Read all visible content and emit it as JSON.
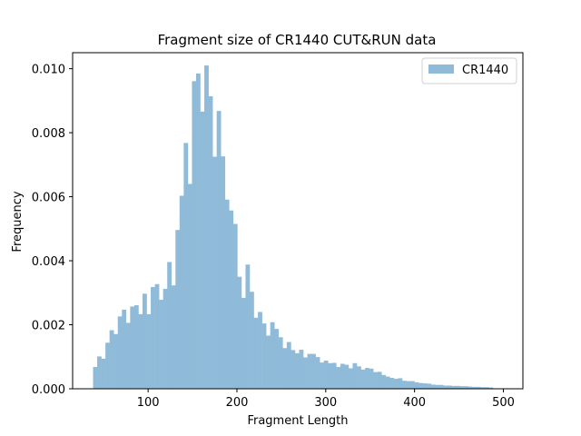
{
  "chart_data": {
    "type": "bar",
    "title": "Fragment size of CR1440 CUT&RUN data",
    "xlabel": "Fragment Length",
    "ylabel": "Frequency",
    "xlim": [
      15,
      522
    ],
    "ylim": [
      0,
      0.0105
    ],
    "x_ticks": [
      100,
      200,
      300,
      400,
      500
    ],
    "y_ticks": [
      0.0,
      0.002,
      0.004,
      0.006,
      0.008,
      0.01
    ],
    "y_tick_labels": [
      "0.000",
      "0.002",
      "0.004",
      "0.006",
      "0.008",
      "0.010"
    ],
    "grid": false,
    "legend": {
      "position": "top-right"
    },
    "series": [
      {
        "name": "CR1440",
        "color": "#8fbbd9",
        "bin_start": 38,
        "bin_width": 4.64,
        "values": [
          0.00068,
          0.00101,
          0.00094,
          0.00144,
          0.00183,
          0.00171,
          0.00226,
          0.00247,
          0.00206,
          0.00257,
          0.00261,
          0.00233,
          0.00297,
          0.00233,
          0.00318,
          0.00327,
          0.00278,
          0.00312,
          0.00396,
          0.00323,
          0.00496,
          0.00603,
          0.00768,
          0.0064,
          0.00961,
          0.00985,
          0.00866,
          0.0101,
          0.00914,
          0.00725,
          0.00868,
          0.00726,
          0.00591,
          0.00557,
          0.00515,
          0.0035,
          0.00284,
          0.00388,
          0.00303,
          0.00222,
          0.0024,
          0.00204,
          0.00166,
          0.00208,
          0.00187,
          0.00161,
          0.00127,
          0.00146,
          0.00121,
          0.00111,
          0.00122,
          0.00098,
          0.00109,
          0.00109,
          0.00099,
          0.00082,
          0.00088,
          0.0008,
          0.00081,
          0.00068,
          0.00078,
          0.00075,
          0.00064,
          0.0008,
          0.0007,
          0.0006,
          0.00065,
          0.00063,
          0.00052,
          0.00053,
          0.00043,
          0.00038,
          0.00034,
          0.00031,
          0.00033,
          0.00025,
          0.00024,
          0.00024,
          0.0002,
          0.00018,
          0.00017,
          0.00016,
          0.00013,
          0.00012,
          0.00012,
          0.0001,
          0.0001,
          9e-05,
          9e-05,
          8e-05,
          8e-05,
          7e-05,
          6e-05,
          6e-05,
          5e-05,
          5e-05,
          4e-05
        ]
      }
    ]
  }
}
